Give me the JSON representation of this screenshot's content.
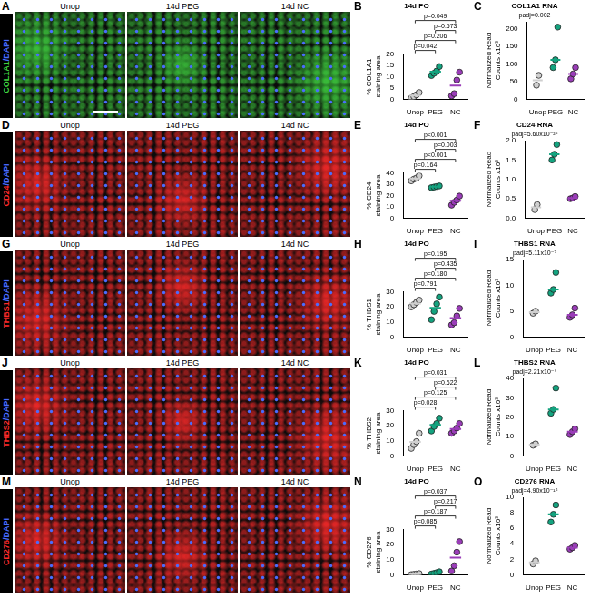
{
  "image_panels": [
    {
      "letter": "A",
      "stain_label": "COL1A1/DAPI",
      "stain_color": "#3fd13f",
      "counterstain_color": "#4a6cff",
      "columns": [
        "Unop",
        "14d PEG",
        "14d NC"
      ]
    },
    {
      "letter": "D",
      "stain_label": "CD24/DAPI",
      "stain_color": "#ff2a2a",
      "counterstain_color": "#4a6cff",
      "columns": [
        "Unop",
        "14d PEG",
        "14d NC"
      ]
    },
    {
      "letter": "G",
      "stain_label": "THBS1/DAPI",
      "stain_color": "#ff2a2a",
      "counterstain_color": "#4a6cff",
      "columns": [
        "Unop",
        "14d PEG",
        "14d NC"
      ]
    },
    {
      "letter": "J",
      "stain_label": "THBS2/DAPI",
      "stain_color": "#ff2a2a",
      "counterstain_color": "#4a6cff",
      "columns": [
        "Unop",
        "14d PEG",
        "14d NC"
      ]
    },
    {
      "letter": "M",
      "stain_label": "CD276/DAPI",
      "stain_color": "#ff2a2a",
      "counterstain_color": "#4a6cff",
      "columns": [
        "Unop",
        "14d PEG",
        "14d NC"
      ]
    }
  ],
  "chart_data": [
    {
      "letter": "B",
      "type": "scatter",
      "title": "14d PO",
      "y_label": "% COL1A1 staining area",
      "categories": [
        "Unop",
        "PEG",
        "NC"
      ],
      "colors": [
        "#cfcfcf",
        "#14a37f",
        "#9a3db8"
      ],
      "values": [
        [
          0.5,
          1.2,
          2.0,
          3.0
        ],
        [
          10.5,
          11.5,
          12.5,
          14.5
        ],
        [
          1.5,
          2.5,
          8.5,
          12.0
        ]
      ],
      "means": [
        1.7,
        12.2,
        6.1
      ],
      "comparisons": [
        {
          "from": "Unop",
          "to": "NC",
          "label": "p=0.049"
        },
        {
          "from": "PEG",
          "to": "NC",
          "label": "p=0.573"
        },
        {
          "from": "Unop",
          "to": "NC",
          "label": "p=0.206"
        },
        {
          "from": "Unop",
          "to": "PEG",
          "label": "p=0.042"
        }
      ],
      "ylim": [
        0,
        20
      ],
      "yticks": [
        0,
        5,
        10,
        15,
        20
      ],
      "grid": false,
      "marker": "circle"
    },
    {
      "letter": "C",
      "type": "scatter",
      "title": "COL1A1 RNA",
      "subtitle": "padj=0.002",
      "y_label": "Normalized Read Counts x10³",
      "categories": [
        "Unop",
        "PEG",
        "NC"
      ],
      "colors": [
        "#cfcfcf",
        "#14a37f",
        "#9a3db8"
      ],
      "values": [
        [
          40,
          68
        ],
        [
          90,
          112,
          205
        ],
        [
          58,
          72,
          90
        ]
      ],
      "medians": [
        54,
        112,
        72
      ],
      "ylim": [
        0,
        220
      ],
      "yticks": [
        0,
        50,
        100,
        150,
        200
      ],
      "grid": false,
      "marker": "circle"
    },
    {
      "letter": "E",
      "type": "scatter",
      "title": "14d PO",
      "y_label": "% CD24 staining area",
      "categories": [
        "Unop",
        "PEG",
        "NC"
      ],
      "colors": [
        "#cfcfcf",
        "#14a37f",
        "#9a3db8"
      ],
      "values": [
        [
          33,
          34.5,
          35.5,
          37.5
        ],
        [
          27,
          27.5,
          28,
          28.5
        ],
        [
          11.5,
          14,
          16,
          19.5
        ]
      ],
      "means": [
        35.1,
        27.8,
        15.3
      ],
      "comparisons": [
        {
          "from": "Unop",
          "to": "NC",
          "label": "p<0.001"
        },
        {
          "from": "PEG",
          "to": "NC",
          "label": "p=0.003"
        },
        {
          "from": "Unop",
          "to": "NC",
          "label": "p<0.001"
        },
        {
          "from": "Unop",
          "to": "PEG",
          "label": "p=0.164"
        }
      ],
      "ylim": [
        0,
        40
      ],
      "yticks": [
        0,
        10,
        20,
        30,
        40
      ],
      "grid": false,
      "marker": "circle"
    },
    {
      "letter": "F",
      "type": "scatter",
      "title": "CD24 RNA",
      "subtitle": "padj=5.60x10⁻²⁵",
      "y_label": "Normalized Read Counts x10³",
      "categories": [
        "Unop",
        "PEG",
        "NC"
      ],
      "colors": [
        "#cfcfcf",
        "#14a37f",
        "#9a3db8"
      ],
      "values": [
        [
          0.22,
          0.35
        ],
        [
          1.5,
          1.65,
          1.9
        ],
        [
          0.5,
          0.52,
          0.56
        ]
      ],
      "medians": [
        0.28,
        1.65,
        0.52
      ],
      "ylim": [
        0,
        2.0
      ],
      "yticks": [
        {
          "value": 0,
          "label": "0.0"
        },
        {
          "value": 0.5,
          "label": "0.5"
        },
        {
          "value": 1,
          "label": "1.0"
        },
        {
          "value": 1.5,
          "label": "1.5"
        },
        {
          "value": 2,
          "label": "2.0"
        }
      ],
      "grid": false,
      "marker": "circle"
    },
    {
      "letter": "H",
      "type": "scatter",
      "title": "14d PO",
      "y_label": "% THBS1 staining area",
      "categories": [
        "Unop",
        "PEG",
        "NC"
      ],
      "colors": [
        "#cfcfcf",
        "#14a37f",
        "#9a3db8"
      ],
      "values": [
        [
          20,
          21.5,
          23,
          24.5
        ],
        [
          11.5,
          17,
          22,
          26.5
        ],
        [
          8,
          9.5,
          14,
          19
        ]
      ],
      "means": [
        22.2,
        19.3,
        12.6
      ],
      "comparisons": [
        {
          "from": "Unop",
          "to": "NC",
          "label": "p=0.195"
        },
        {
          "from": "PEG",
          "to": "NC",
          "label": "p=0.435"
        },
        {
          "from": "Unop",
          "to": "NC",
          "label": "p=0.180"
        },
        {
          "from": "Unop",
          "to": "PEG",
          "label": "p=0.791"
        }
      ],
      "ylim": [
        0,
        30
      ],
      "yticks": [
        0,
        10,
        20,
        30
      ],
      "grid": false,
      "marker": "circle"
    },
    {
      "letter": "I",
      "type": "scatter",
      "title": "THBS1 RNA",
      "subtitle": "padj=5.11x10⁻⁷",
      "y_label": "Normalized Read Counts x10³",
      "categories": [
        "Unop",
        "PEG",
        "NC"
      ],
      "colors": [
        "#cfcfcf",
        "#14a37f",
        "#9a3db8"
      ],
      "values": [
        [
          4.6,
          5.0
        ],
        [
          8.5,
          9.2,
          12.5
        ],
        [
          3.8,
          4.3,
          5.6
        ]
      ],
      "medians": [
        4.8,
        9.2,
        4.3
      ],
      "ylim": [
        0,
        15
      ],
      "yticks": [
        0,
        5,
        10,
        15
      ],
      "grid": false,
      "marker": "circle"
    },
    {
      "letter": "K",
      "type": "scatter",
      "title": "14d PO",
      "y_label": "% THBS2 staining area",
      "categories": [
        "Unop",
        "PEG",
        "NC"
      ],
      "colors": [
        "#cfcfcf",
        "#14a37f",
        "#9a3db8"
      ],
      "values": [
        [
          5,
          7.5,
          9.5,
          15
        ],
        [
          16.5,
          19.5,
          21.5,
          25
        ],
        [
          15,
          16.5,
          18.5,
          21.5
        ]
      ],
      "means": [
        9.3,
        20.6,
        17.9
      ],
      "comparisons": [
        {
          "from": "Unop",
          "to": "NC",
          "label": "p=0.031"
        },
        {
          "from": "PEG",
          "to": "NC",
          "label": "p=0.622"
        },
        {
          "from": "Unop",
          "to": "NC",
          "label": "p=0.125"
        },
        {
          "from": "Unop",
          "to": "PEG",
          "label": "p=0.028"
        }
      ],
      "ylim": [
        0,
        30
      ],
      "yticks": [
        0,
        10,
        20,
        30
      ],
      "grid": false,
      "marker": "circle"
    },
    {
      "letter": "L",
      "type": "scatter",
      "title": "THBS2 RNA",
      "subtitle": "padj=2.21x10⁻⁹",
      "y_label": "Normalized Read Counts x10³",
      "categories": [
        "Unop",
        "PEG",
        "NC"
      ],
      "colors": [
        "#cfcfcf",
        "#14a37f",
        "#9a3db8"
      ],
      "values": [
        [
          5.5,
          6.2
        ],
        [
          22,
          24,
          35
        ],
        [
          11,
          12.5,
          14
        ]
      ],
      "medians": [
        5.85,
        24,
        12.5
      ],
      "ylim": [
        0,
        40
      ],
      "yticks": [
        0,
        10,
        20,
        30,
        40
      ],
      "grid": false,
      "marker": "circle"
    },
    {
      "letter": "N",
      "type": "scatter",
      "title": "14d PO",
      "y_label": "% CD276 staining area",
      "categories": [
        "Unop",
        "PEG",
        "NC"
      ],
      "colors": [
        "#cfcfcf",
        "#14a37f",
        "#9a3db8"
      ],
      "values": [
        [
          0.1,
          0.3,
          0.5,
          0.8
        ],
        [
          0.5,
          0.9,
          1.4,
          2.0
        ],
        [
          2.5,
          6,
          15,
          22
        ]
      ],
      "means": [
        0.4,
        1.2,
        11.4
      ],
      "comparisons": [
        {
          "from": "Unop",
          "to": "NC",
          "label": "p=0.037"
        },
        {
          "from": "PEG",
          "to": "NC",
          "label": "p=0.217"
        },
        {
          "from": "Unop",
          "to": "NC",
          "label": "p=0.187"
        },
        {
          "from": "Unop",
          "to": "PEG",
          "label": "p=0.085"
        }
      ],
      "ylim": [
        0,
        30
      ],
      "yticks": [
        0,
        10,
        20,
        30
      ],
      "grid": false,
      "marker": "circle"
    },
    {
      "letter": "O",
      "type": "scatter",
      "title": "CD276 RNA",
      "subtitle": "padj=4.90x10⁻¹⁵",
      "y_label": "Normalized Read Counts x10³",
      "categories": [
        "Unop",
        "PEG",
        "NC"
      ],
      "colors": [
        "#cfcfcf",
        "#14a37f",
        "#9a3db8"
      ],
      "values": [
        [
          1.4,
          1.8
        ],
        [
          6.8,
          7.8,
          9
        ],
        [
          3.3,
          3.5,
          3.8
        ]
      ],
      "medians": [
        1.6,
        7.8,
        3.5
      ],
      "ylim": [
        0,
        10
      ],
      "yticks": [
        0,
        2,
        4,
        6,
        8,
        10
      ],
      "grid": false,
      "marker": "circle"
    }
  ]
}
